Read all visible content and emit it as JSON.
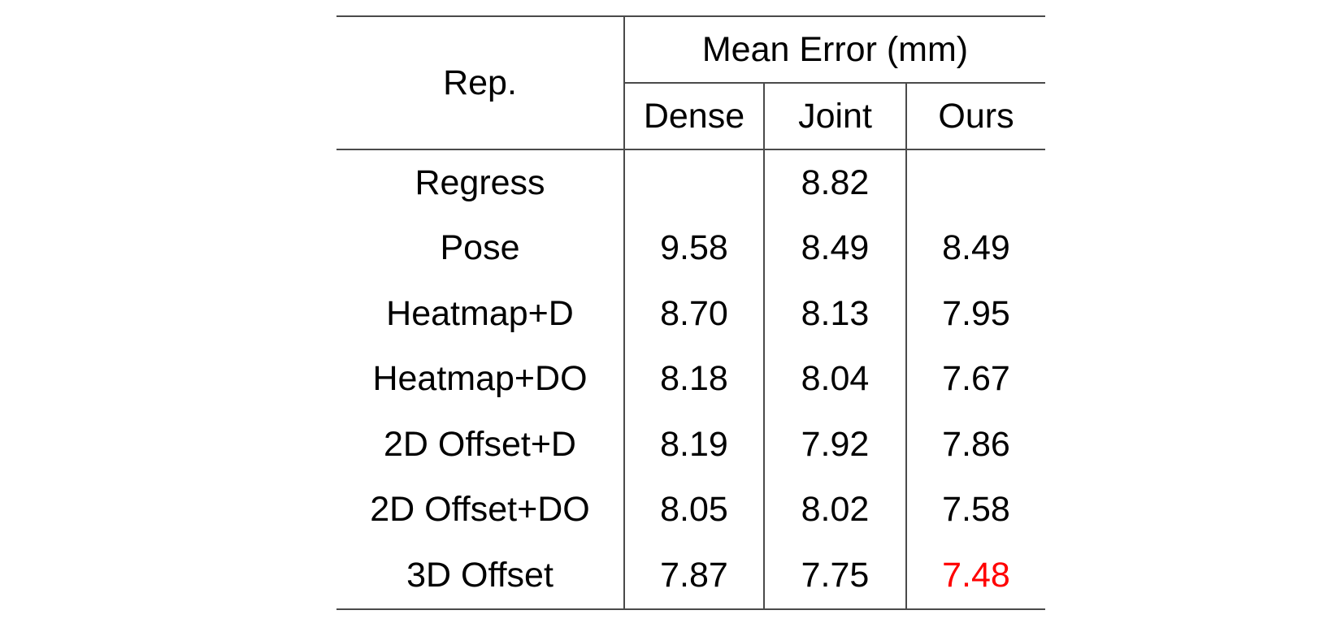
{
  "table": {
    "header": {
      "rep_label": "Rep.",
      "group_label": "Mean Error (mm)",
      "columns": [
        "Dense",
        "Joint",
        "Ours"
      ]
    },
    "rows": [
      {
        "rep": "Regress",
        "dense": "",
        "joint": "8.82",
        "ours": ""
      },
      {
        "rep": "Pose",
        "dense": "9.58",
        "joint": "8.49",
        "ours": "8.49"
      },
      {
        "rep": "Heatmap+D",
        "dense": "8.70",
        "joint": "8.13",
        "ours": "7.95"
      },
      {
        "rep": "Heatmap+DO",
        "dense": "8.18",
        "joint": "8.04",
        "ours": "7.67"
      },
      {
        "rep": "2D Offset+D",
        "dense": "8.19",
        "joint": "7.92",
        "ours": "7.86"
      },
      {
        "rep": "2D Offset+DO",
        "dense": "8.05",
        "joint": "8.02",
        "ours": "7.58"
      },
      {
        "rep": "3D Offset",
        "dense": "7.87",
        "joint": "7.75",
        "ours": "7.48"
      }
    ],
    "best_value_color": "#ff0000"
  }
}
